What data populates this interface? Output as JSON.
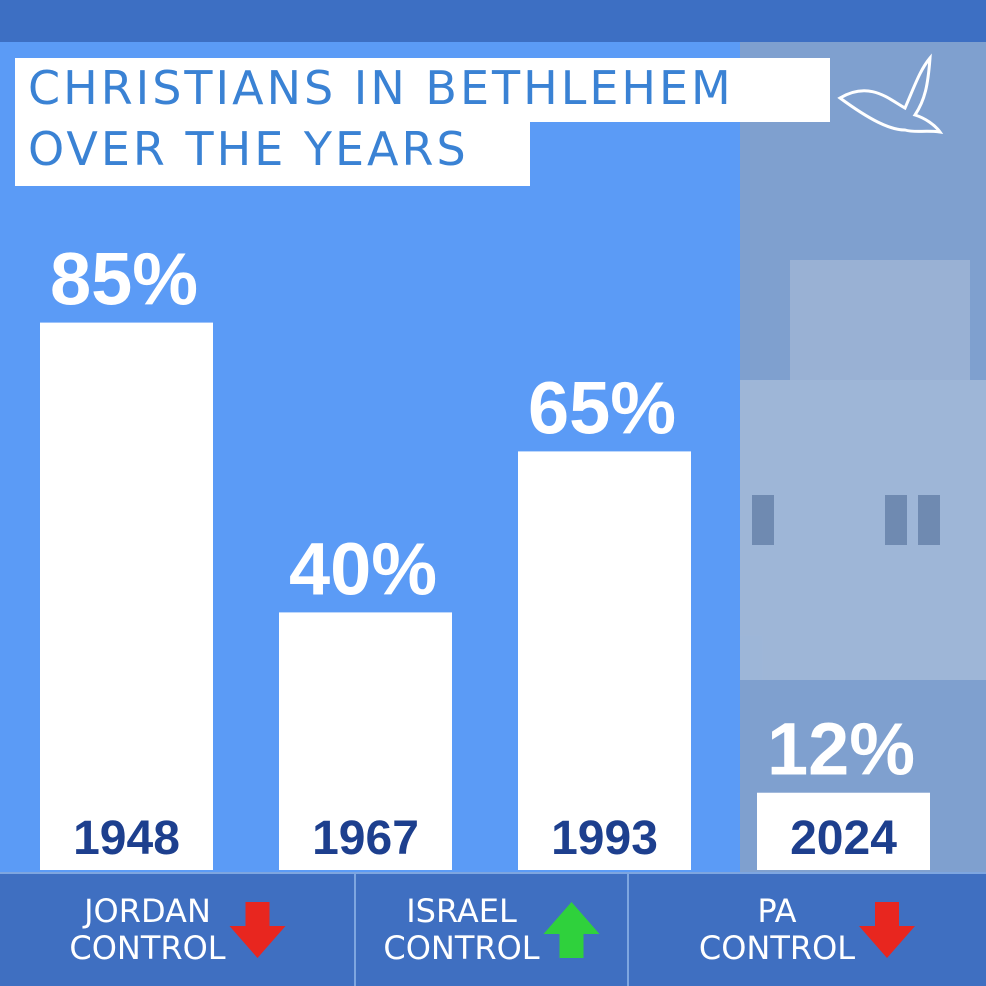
{
  "chart_data": {
    "type": "bar",
    "title": [
      "CHRISTIANS IN BETHLEHEM",
      "OVER THE YEARS"
    ],
    "categories": [
      "1948",
      "1967",
      "1993",
      "2024"
    ],
    "values": [
      85,
      40,
      65,
      12
    ],
    "value_labels": [
      "85%",
      "40%",
      "65%",
      "12%"
    ],
    "color": "#ffffff",
    "ylim": [
      0,
      100
    ],
    "annotations": [
      {
        "lines": [
          "JORDAN",
          "CONTROL"
        ],
        "arrow": "down",
        "color": "#e8261f"
      },
      {
        "lines": [
          "ISRAEL",
          "CONTROL"
        ],
        "arrow": "up",
        "color": "#2fd13c"
      },
      {
        "lines": [
          "PA",
          "CONTROL"
        ],
        "arrow": "down",
        "color": "#e8261f"
      }
    ]
  }
}
